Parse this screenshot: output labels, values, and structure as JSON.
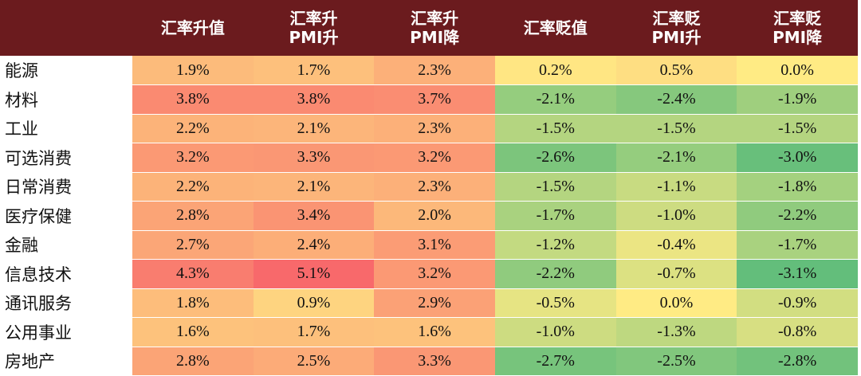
{
  "chart_data": {
    "type": "heatmap",
    "columns": [
      {
        "lines": [
          "汇率升值"
        ]
      },
      {
        "lines": [
          "汇率升",
          "PMI升"
        ]
      },
      {
        "lines": [
          "汇率升",
          "PMI降"
        ]
      },
      {
        "lines": [
          "汇率贬值"
        ]
      },
      {
        "lines": [
          "汇率贬",
          "PMI升"
        ]
      },
      {
        "lines": [
          "汇率贬",
          "PMI降"
        ]
      }
    ],
    "rows": [
      {
        "label": "能源",
        "values": [
          1.9,
          1.7,
          2.3,
          0.2,
          0.5,
          0.0
        ],
        "display": [
          "1.9%",
          "1.7%",
          "2.3%",
          "0.2%",
          "0.5%",
          "0.0%"
        ]
      },
      {
        "label": "材料",
        "values": [
          3.8,
          3.8,
          3.7,
          -2.1,
          -2.4,
          -1.9
        ],
        "display": [
          "3.8%",
          "3.8%",
          "3.7%",
          "-2.1%",
          "-2.4%",
          "-1.9%"
        ]
      },
      {
        "label": "工业",
        "values": [
          2.2,
          2.1,
          2.3,
          -1.5,
          -1.5,
          -1.5
        ],
        "display": [
          "2.2%",
          "2.1%",
          "2.3%",
          "-1.5%",
          "-1.5%",
          "-1.5%"
        ]
      },
      {
        "label": "可选消费",
        "values": [
          3.2,
          3.3,
          3.2,
          -2.6,
          -2.1,
          -3.0
        ],
        "display": [
          "3.2%",
          "3.3%",
          "3.2%",
          "-2.6%",
          "-2.1%",
          "-3.0%"
        ]
      },
      {
        "label": "日常消费",
        "values": [
          2.2,
          2.1,
          2.3,
          -1.5,
          -1.1,
          -1.8
        ],
        "display": [
          "2.2%",
          "2.1%",
          "2.3%",
          "-1.5%",
          "-1.1%",
          "-1.8%"
        ]
      },
      {
        "label": "医疗保健",
        "values": [
          2.8,
          3.4,
          2.0,
          -1.7,
          -1.0,
          -2.2
        ],
        "display": [
          "2.8%",
          "3.4%",
          "2.0%",
          "-1.7%",
          "-1.0%",
          "-2.2%"
        ]
      },
      {
        "label": "金融",
        "values": [
          2.7,
          2.4,
          3.1,
          -1.2,
          -0.4,
          -1.7
        ],
        "display": [
          "2.7%",
          "2.4%",
          "3.1%",
          "-1.2%",
          "-0.4%",
          "-1.7%"
        ]
      },
      {
        "label": "信息技术",
        "values": [
          4.3,
          5.1,
          3.2,
          -2.2,
          -0.7,
          -3.1
        ],
        "display": [
          "4.3%",
          "5.1%",
          "3.2%",
          "-2.2%",
          "-0.7%",
          "-3.1%"
        ]
      },
      {
        "label": "通讯服务",
        "values": [
          1.8,
          0.9,
          2.9,
          -0.5,
          0.0,
          -0.9
        ],
        "display": [
          "1.8%",
          "0.9%",
          "2.9%",
          "-0.5%",
          "0.0%",
          "-0.9%"
        ]
      },
      {
        "label": "公用事业",
        "values": [
          1.6,
          1.7,
          1.6,
          -1.0,
          -1.3,
          -0.8
        ],
        "display": [
          "1.6%",
          "1.7%",
          "1.6%",
          "-1.0%",
          "-1.3%",
          "-0.8%"
        ]
      },
      {
        "label": "房地产",
        "values": [
          2.8,
          2.5,
          3.3,
          -2.7,
          -2.5,
          -2.8
        ],
        "display": [
          "2.8%",
          "2.5%",
          "3.3%",
          "-2.7%",
          "-2.5%",
          "-2.8%"
        ]
      }
    ],
    "color_scale": {
      "stops": [
        {
          "value": -3.1,
          "color": "#63be7b"
        },
        {
          "value": 0.0,
          "color": "#ffeb84"
        },
        {
          "value": 5.1,
          "color": "#f8696b"
        }
      ]
    },
    "header_color": "#6b1b1e",
    "header_text_color": "#ffffff"
  }
}
